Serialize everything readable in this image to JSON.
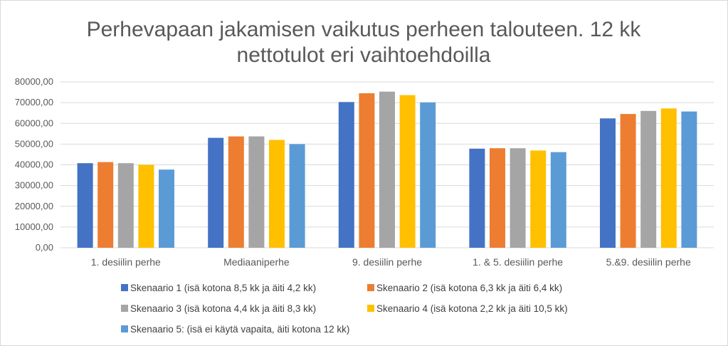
{
  "chart_data": {
    "type": "bar",
    "title_lines": [
      "Perhevapaan jakamisen vaikutus perheen talouteen. 12 kk",
      "nettotulot eri vaihtoehdoilla"
    ],
    "xlabel": "",
    "ylabel": "",
    "ylim": [
      0,
      80000
    ],
    "ytick_step": 10000,
    "ytick_labels": [
      "0,00",
      "10000,00",
      "20000,00",
      "30000,00",
      "40000,00",
      "50000,00",
      "60000,00",
      "70000,00",
      "80000,00"
    ],
    "grid": true,
    "legend_position": "bottom",
    "categories": [
      "1. desiilin perhe",
      "Mediaaniperhe",
      "9. desiilin perhe",
      "1. & 5. desiilin perhe",
      "5.&9. desiilin perhe"
    ],
    "series": [
      {
        "name": "Skenaario 1 (isä kotona 8,5 kk ja äiti 4,2 kk)",
        "color": "#4472c4",
        "values": [
          40800,
          53000,
          70300,
          47800,
          62400
        ]
      },
      {
        "name": "Skenaario 2 (isä kotona 6,3 kk ja äiti 6,4 kk)",
        "color": "#ed7d31",
        "values": [
          41300,
          53700,
          74500,
          48000,
          64500
        ]
      },
      {
        "name": "Skenaario 3 (isä kotona 4,4 kk ja äiti 8,3 kk)",
        "color": "#a5a5a5",
        "values": [
          40800,
          53700,
          75300,
          48000,
          66000
        ]
      },
      {
        "name": "Skenaario 4 (isä kotona 2,2 kk ja äiti 10,5 kk)",
        "color": "#ffc000",
        "values": [
          40000,
          52000,
          73600,
          46900,
          67200
        ]
      },
      {
        "name": "Skenaario 5: (isä ei käytä vapaita, äiti kotona 12 kk)",
        "color": "#5b9bd5",
        "values": [
          37700,
          50000,
          70100,
          46100,
          65700
        ]
      }
    ]
  }
}
